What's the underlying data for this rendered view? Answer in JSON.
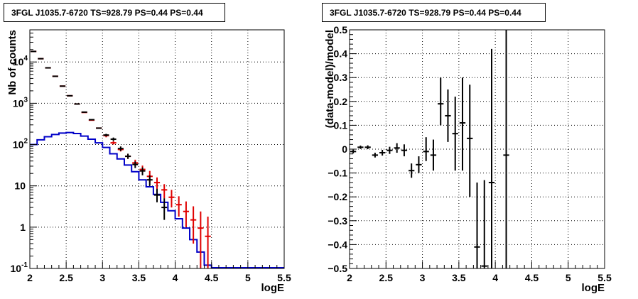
{
  "chart_data": [
    {
      "type": "line",
      "title": "3FGL J1035.7-6720 TS=928.79 PS=0.44 PS=0.44",
      "xlabel": "logE",
      "ylabel": "Nb of counts",
      "xlim": [
        2,
        5.5
      ],
      "ylim": [
        0.1,
        60000
      ],
      "yscale": "log",
      "grid": true,
      "x_ticks": [
        "2",
        "2.5",
        "3",
        "3.5",
        "4",
        "4.5",
        "5",
        "5.5"
      ],
      "y_ticks": [
        {
          "value": 0.1,
          "base": "10",
          "exp": "-1",
          "label": "10-1"
        },
        {
          "value": 1,
          "base": "1",
          "exp": "",
          "label": "1"
        },
        {
          "value": 10,
          "base": "10",
          "exp": "",
          "label": "10"
        },
        {
          "value": 100,
          "base": "10",
          "exp": "2",
          "label": "102"
        },
        {
          "value": 1000,
          "base": "10",
          "exp": "3",
          "label": "103"
        },
        {
          "value": 10000,
          "base": "10",
          "exp": "4",
          "label": "104"
        }
      ],
      "bin_edges": [
        2.0,
        2.1,
        2.2,
        2.3,
        2.4,
        2.5,
        2.6,
        2.7,
        2.8,
        2.9,
        3.0,
        3.1,
        3.2,
        3.3,
        3.4,
        3.5,
        3.6,
        3.7,
        3.8,
        3.9,
        4.0,
        4.1,
        4.2,
        4.3,
        4.4,
        4.5
      ],
      "series": [
        {
          "color": "#e00000",
          "style": "histogram-errorbars",
          "values": [
            18000,
            12000,
            7200,
            4500,
            2600,
            1520,
            960,
            600,
            390,
            250,
            165,
            110,
            76,
            52,
            36,
            25,
            17,
            12,
            8,
            5.3,
            3.5,
            2.4,
            1.5,
            0.95,
            0.6
          ],
          "err_low": [
            null,
            null,
            null,
            null,
            null,
            null,
            null,
            null,
            null,
            null,
            150,
            100,
            68,
            45,
            30,
            20,
            12,
            8,
            5,
            3,
            1.8,
            1.0,
            0.4,
            0.1,
            0.1
          ],
          "err_high": [
            null,
            null,
            null,
            null,
            null,
            null,
            null,
            null,
            null,
            null,
            180,
            120,
            85,
            60,
            43,
            31,
            23,
            16,
            11,
            8,
            5.6,
            4.2,
            3.2,
            2.4,
            1.8
          ]
        },
        {
          "color": "#000000",
          "style": "points-errorbars",
          "values": [
            18000,
            12000,
            7200,
            4500,
            2600,
            1520,
            960,
            610,
            400,
            250,
            170,
            135,
            80,
            52,
            33,
            23,
            14,
            6,
            3,
            null,
            null,
            null,
            null,
            null,
            null
          ],
          "err_low": [
            null,
            null,
            null,
            null,
            null,
            null,
            null,
            null,
            null,
            null,
            158,
            122,
            70,
            45,
            27,
            18,
            10,
            4,
            1.5,
            null,
            null,
            null,
            null,
            null,
            null
          ],
          "err_high": [
            null,
            null,
            null,
            null,
            null,
            null,
            null,
            null,
            null,
            null,
            182,
            148,
            90,
            60,
            39,
            28,
            18,
            8.5,
            5,
            null,
            null,
            null,
            null,
            null,
            null
          ]
        },
        {
          "color": "#0000c8",
          "style": "histogram-line",
          "values": [
            100,
            130,
            155,
            175,
            190,
            195,
            185,
            160,
            135,
            110,
            85,
            60,
            45,
            32,
            22,
            14,
            9.5,
            6.2,
            4,
            2.5,
            1.6,
            0.95,
            0.5,
            0.25,
            0.12
          ]
        }
      ]
    },
    {
      "type": "scatter",
      "title": "3FGL J1035.7-6720 TS=928.79 PS=0.44 PS=0.44",
      "xlabel": "logE",
      "ylabel": "(data-model)/model",
      "xlim": [
        2,
        5.5
      ],
      "ylim": [
        -0.5,
        0.5
      ],
      "grid": true,
      "x_ticks": [
        "2",
        "2.5",
        "3",
        "3.5",
        "4",
        "4.5",
        "5",
        "5.5"
      ],
      "y_ticks": [
        "−0.5",
        "−0.4",
        "−0.3",
        "−0.2",
        "−0.1",
        "0",
        "0.1",
        "0.2",
        "0.3",
        "0.4",
        "0.5"
      ],
      "points": [
        {
          "x0": 2.0,
          "x1": 2.1,
          "y": -0.01,
          "lo": -0.018,
          "hi": -0.002
        },
        {
          "x0": 2.1,
          "x1": 2.2,
          "y": 0.008,
          "lo": 0.001,
          "hi": 0.015
        },
        {
          "x0": 2.2,
          "x1": 2.3,
          "y": 0.008,
          "lo": 0.0,
          "hi": 0.016
        },
        {
          "x0": 2.3,
          "x1": 2.4,
          "y": -0.025,
          "lo": -0.035,
          "hi": -0.015
        },
        {
          "x0": 2.4,
          "x1": 2.5,
          "y": -0.015,
          "lo": -0.027,
          "hi": -0.003
        },
        {
          "x0": 2.5,
          "x1": 2.6,
          "y": -0.005,
          "lo": -0.02,
          "hi": 0.01
        },
        {
          "x0": 2.6,
          "x1": 2.7,
          "y": 0.005,
          "lo": -0.015,
          "hi": 0.025
        },
        {
          "x0": 2.7,
          "x1": 2.8,
          "y": -0.005,
          "lo": -0.03,
          "hi": 0.02
        },
        {
          "x0": 2.8,
          "x1": 2.9,
          "y": -0.09,
          "lo": -0.12,
          "hi": -0.06
        },
        {
          "x0": 2.9,
          "x1": 3.0,
          "y": -0.065,
          "lo": -0.1,
          "hi": -0.03
        },
        {
          "x0": 3.0,
          "x1": 3.1,
          "y": -0.01,
          "lo": -0.05,
          "hi": 0.05
        },
        {
          "x0": 3.1,
          "x1": 3.2,
          "y": -0.025,
          "lo": -0.09,
          "hi": 0.04
        },
        {
          "x0": 3.2,
          "x1": 3.3,
          "y": 0.19,
          "lo": 0.1,
          "hi": 0.3
        },
        {
          "x0": 3.3,
          "x1": 3.4,
          "y": 0.14,
          "lo": 0.03,
          "hi": 0.25
        },
        {
          "x0": 3.4,
          "x1": 3.5,
          "y": 0.065,
          "lo": -0.09,
          "hi": 0.22
        },
        {
          "x0": 3.5,
          "x1": 3.6,
          "y": 0.11,
          "lo": -0.09,
          "hi": 0.3
        },
        {
          "x0": 3.6,
          "x1": 3.7,
          "y": 0.045,
          "lo": -0.2,
          "hi": 0.27
        },
        {
          "x0": 3.7,
          "x1": 3.8,
          "y": -0.41,
          "lo": -0.5,
          "hi": -0.14
        },
        {
          "x0": 3.8,
          "x1": 3.9,
          "y": -0.49,
          "lo": -0.5,
          "hi": -0.13
        },
        {
          "x0": 3.9,
          "x1": 4.0,
          "y": -0.14,
          "lo": -0.5,
          "hi": 0.42
        },
        {
          "x0": 4.1,
          "x1": 4.2,
          "y": -0.025,
          "lo": -0.5,
          "hi": 0.5
        }
      ]
    }
  ]
}
